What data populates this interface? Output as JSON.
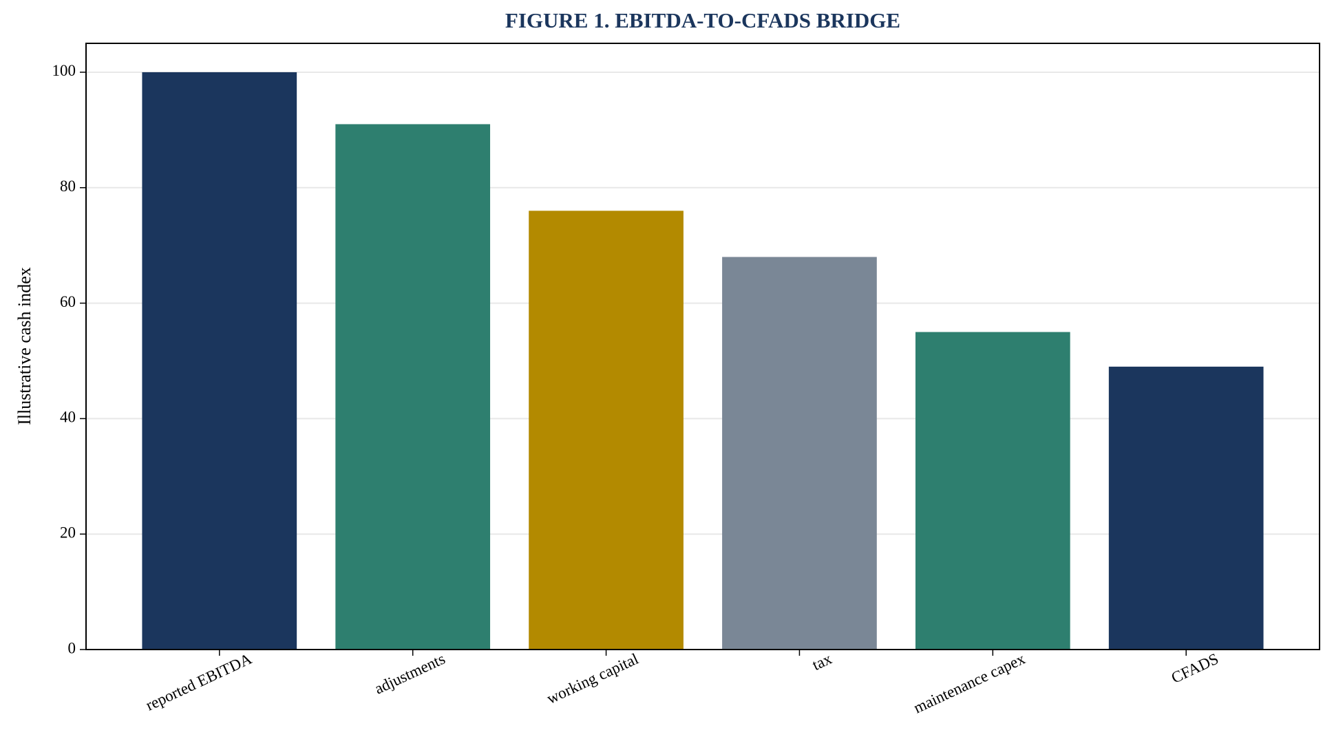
{
  "chart_data": {
    "type": "bar",
    "title": "FIGURE 1. EBITDA-TO-CFADS BRIDGE",
    "y_label": "Illustrative cash index",
    "categories": [
      "reported EBITDA",
      "adjustments",
      "working capital",
      "tax",
      "maintenance capex",
      "CFADS"
    ],
    "values": [
      100,
      91,
      76,
      68,
      55,
      49
    ],
    "colors": [
      "#1b365d",
      "#2e7f6f",
      "#b38a00",
      "#7a8796",
      "#2e7f6f",
      "#1b365d"
    ],
    "ylim": [
      0,
      105
    ],
    "yticks": [
      0,
      20,
      40,
      60,
      80,
      100
    ],
    "grid": true
  }
}
